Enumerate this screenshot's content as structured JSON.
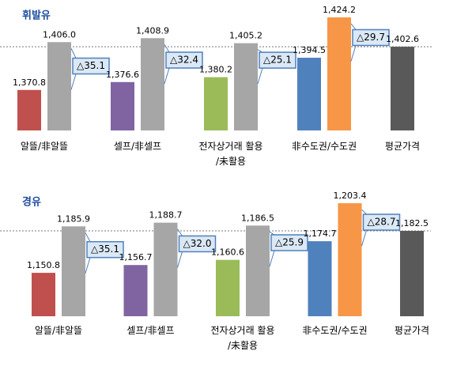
{
  "chart_data": [
    {
      "type": "bar",
      "title": "휘발유",
      "categories": [
        "알뜰/非알뜰",
        "셀프/非셀프",
        "전자상거래 활용\n/未활용",
        "非수도권/수도권",
        "평균가격"
      ],
      "series": [
        {
          "colors": [
            "#c0504d",
            "#8064a2",
            "#9bbb59",
            "#4f81bd",
            "#595959"
          ],
          "values": [
            1370.8,
            1376.6,
            1380.2,
            1394.5,
            1402.6
          ],
          "value_labels": [
            "1,370.8",
            "1,376.6",
            "1,380.2",
            "1,394.5",
            "1,402.6"
          ]
        },
        {
          "colors": [
            "#a6a6a6",
            "#a6a6a6",
            "#a6a6a6",
            "#f79646",
            null
          ],
          "values": [
            1406.0,
            1408.9,
            1405.2,
            1424.2,
            null
          ],
          "value_labels": [
            "1,406.0",
            "1,408.9",
            "1,405.2",
            "1,424.2",
            null
          ]
        }
      ],
      "annotations": [
        "△35.1",
        "△32.4",
        "△25.1",
        "△29.7"
      ],
      "ylim": [
        1341,
        1430
      ],
      "average_line": true
    },
    {
      "type": "bar",
      "title": "경유",
      "categories": [
        "알뜰/非알뜰",
        "셀프/非셀프",
        "전자상거래 활용\n/未활용",
        "非수도권/수도권",
        "평균가격"
      ],
      "series": [
        {
          "colors": [
            "#c0504d",
            "#8064a2",
            "#9bbb59",
            "#4f81bd",
            "#595959"
          ],
          "values": [
            1150.8,
            1156.7,
            1160.6,
            1174.7,
            1182.5
          ],
          "value_labels": [
            "1,150.8",
            "1,156.7",
            "1,160.6",
            "1,174.7",
            "1,182.5"
          ]
        },
        {
          "colors": [
            "#a6a6a6",
            "#a6a6a6",
            "#a6a6a6",
            "#f79646",
            null
          ],
          "values": [
            1185.9,
            1188.7,
            1186.5,
            1203.4,
            null
          ],
          "value_labels": [
            "1,185.9",
            "1,188.7",
            "1,186.5",
            "1,203.4",
            null
          ]
        }
      ],
      "annotations": [
        "△35.1",
        "△32.0",
        "△25.9",
        "△28.7"
      ],
      "ylim": [
        1118,
        1210
      ],
      "average_line": true
    }
  ]
}
